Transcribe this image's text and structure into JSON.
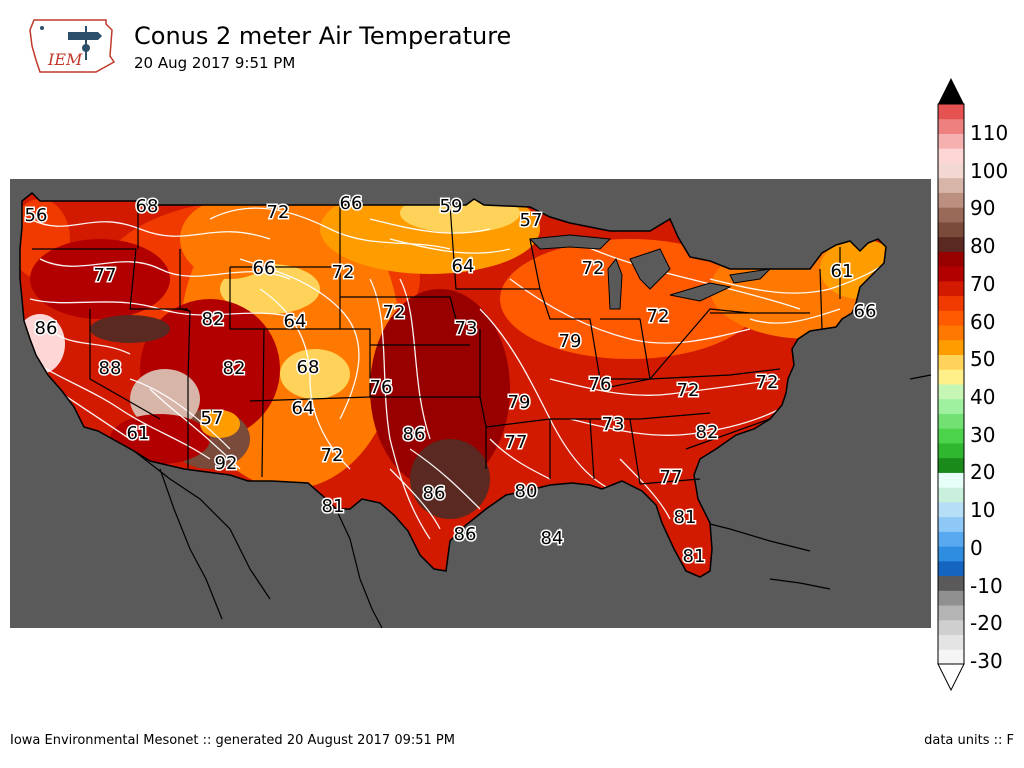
{
  "logo": {
    "text": "IEM"
  },
  "header": {
    "title": "Conus 2 meter Air Temperature",
    "subtitle": "20 Aug 2017 9:51 PM"
  },
  "footer": {
    "left": "Iowa Environmental Mesonet :: generated 20 August 2017 09:51 PM",
    "right": "data units :: F"
  },
  "colorbar": {
    "ticks": [
      "110",
      "100",
      "90",
      "80",
      "70",
      "60",
      "50",
      "40",
      "30",
      "20",
      "10",
      "0",
      "-10",
      "-20",
      "-30"
    ],
    "colors": [
      "#f5f5f5",
      "#e4e4e4",
      "#cfcfcf",
      "#b4b4b4",
      "#909090",
      "#5a5a5a",
      "#1565c0",
      "#2f8de0",
      "#58a9ef",
      "#8dc8f6",
      "#b6def7",
      "#c8f0dc",
      "#e6fff8",
      "#1a8a1a",
      "#2fb82f",
      "#4bd34b",
      "#72e072",
      "#9ff09f",
      "#c6f6b6",
      "#fff08a",
      "#ffd35a",
      "#ff9d00",
      "#ff7800",
      "#ff5a00",
      "#f03a00",
      "#d11a00",
      "#b20000",
      "#980000",
      "#5a2a22",
      "#7a4a3a",
      "#9a6a58",
      "#bb9080",
      "#d7b5a8",
      "#f2d8d0",
      "#ffd6d6",
      "#f7b0b0",
      "#ee8080",
      "#e55252",
      "#000000"
    ]
  },
  "map_labels": [
    {
      "text": "56"
    },
    {
      "text": "68"
    },
    {
      "text": "72"
    },
    {
      "text": "66"
    },
    {
      "text": "59"
    },
    {
      "text": "57"
    },
    {
      "text": "77"
    },
    {
      "text": "66"
    },
    {
      "text": "72"
    },
    {
      "text": "64"
    },
    {
      "text": "72"
    },
    {
      "text": "61"
    },
    {
      "text": "86"
    },
    {
      "text": "82"
    },
    {
      "text": "64"
    },
    {
      "text": "72"
    },
    {
      "text": "73"
    },
    {
      "text": "79"
    },
    {
      "text": "72"
    },
    {
      "text": "66"
    },
    {
      "text": "88"
    },
    {
      "text": "82"
    },
    {
      "text": "68"
    },
    {
      "text": "76"
    },
    {
      "text": "76"
    },
    {
      "text": "72"
    },
    {
      "text": "72"
    },
    {
      "text": "57"
    },
    {
      "text": "64"
    },
    {
      "text": "79"
    },
    {
      "text": "61"
    },
    {
      "text": "86"
    },
    {
      "text": "77"
    },
    {
      "text": "73"
    },
    {
      "text": "82"
    },
    {
      "text": "92"
    },
    {
      "text": "72"
    },
    {
      "text": "80"
    },
    {
      "text": "77"
    },
    {
      "text": "86"
    },
    {
      "text": "81"
    },
    {
      "text": "81"
    },
    {
      "text": "86"
    },
    {
      "text": "84"
    },
    {
      "text": "81"
    }
  ]
}
